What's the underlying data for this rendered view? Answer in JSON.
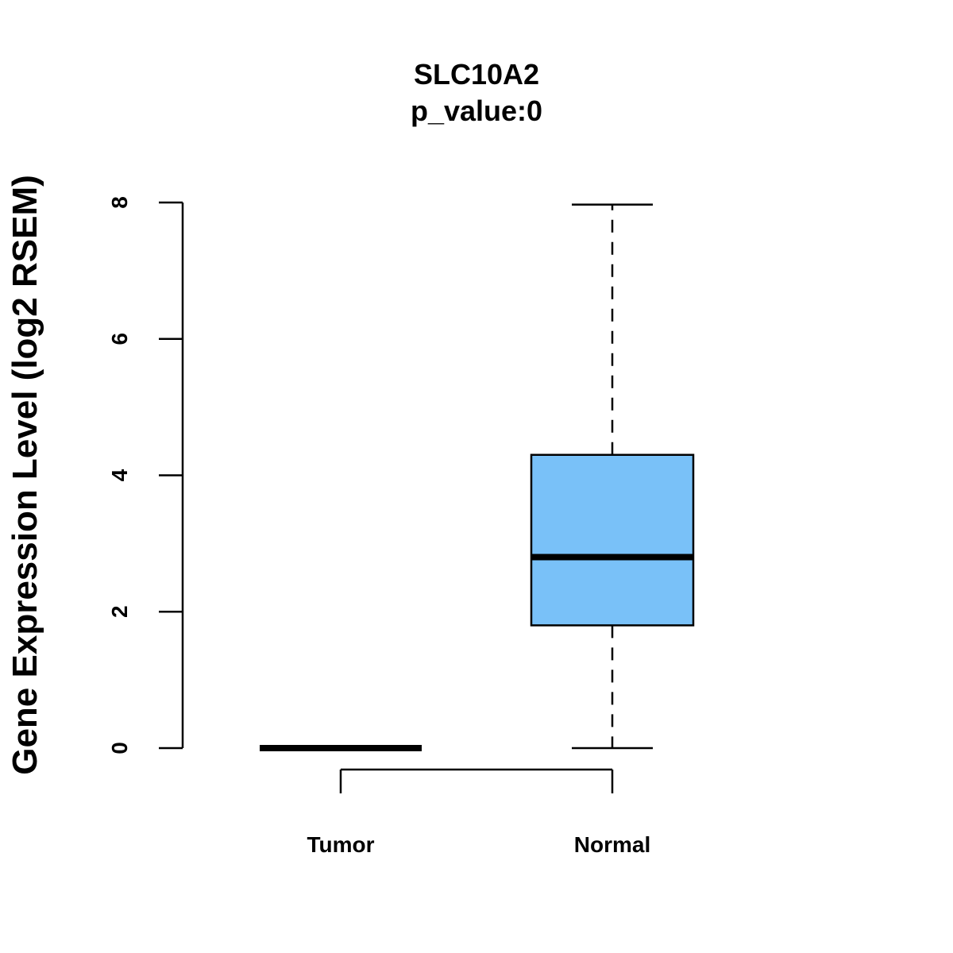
{
  "chart_data": {
    "type": "box",
    "title": "SLC10A2",
    "subtitle": "p_value:0",
    "xlabel": "",
    "ylabel": "Gene Expression Level (log2 RSEM)",
    "ylim": [
      0,
      8
    ],
    "yticks": [
      0,
      2,
      4,
      6,
      8
    ],
    "categories": [
      "Tumor",
      "Normal"
    ],
    "boxes": [
      {
        "name": "Tumor",
        "min": 0,
        "q1": 0,
        "median": 0,
        "q3": 0,
        "max": 0,
        "color": "#000000"
      },
      {
        "name": "Normal",
        "min": 0,
        "q1": 1.8,
        "median": 2.8,
        "q3": 4.3,
        "max": 7.97,
        "color": "#79C1F8"
      }
    ],
    "grid": false,
    "legend": "none"
  }
}
